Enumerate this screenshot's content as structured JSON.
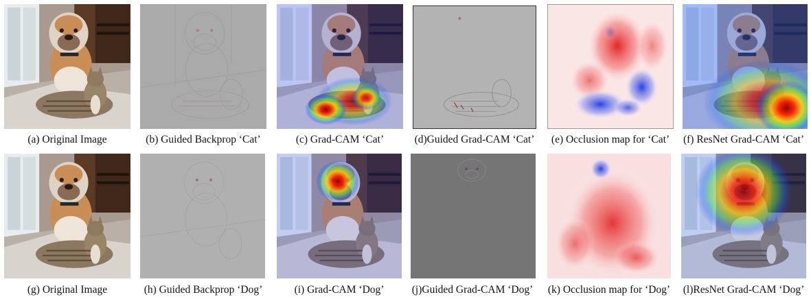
{
  "figure": {
    "row1": {
      "a": "(a) Original Image",
      "b": "(b) Guided Backprop ‘Cat’",
      "c": "(c) Grad-CAM ‘Cat’",
      "d": "(d)Guided Grad-CAM ‘Cat’",
      "e": "(e) Occlusion map for ‘Cat’",
      "f": "(f) ResNet Grad-CAM ‘Cat’"
    },
    "row2": {
      "g": "(g) Original Image",
      "h": "(h) Guided Backprop ‘Dog’",
      "i": "(i) Grad-CAM ‘Dog’",
      "j": "(j)Guided Grad-CAM ‘Dog’",
      "k": "(k) Occlusion map for ‘Dog’",
      "l": "(l)ResNet Grad-CAM ‘Dog’"
    }
  }
}
